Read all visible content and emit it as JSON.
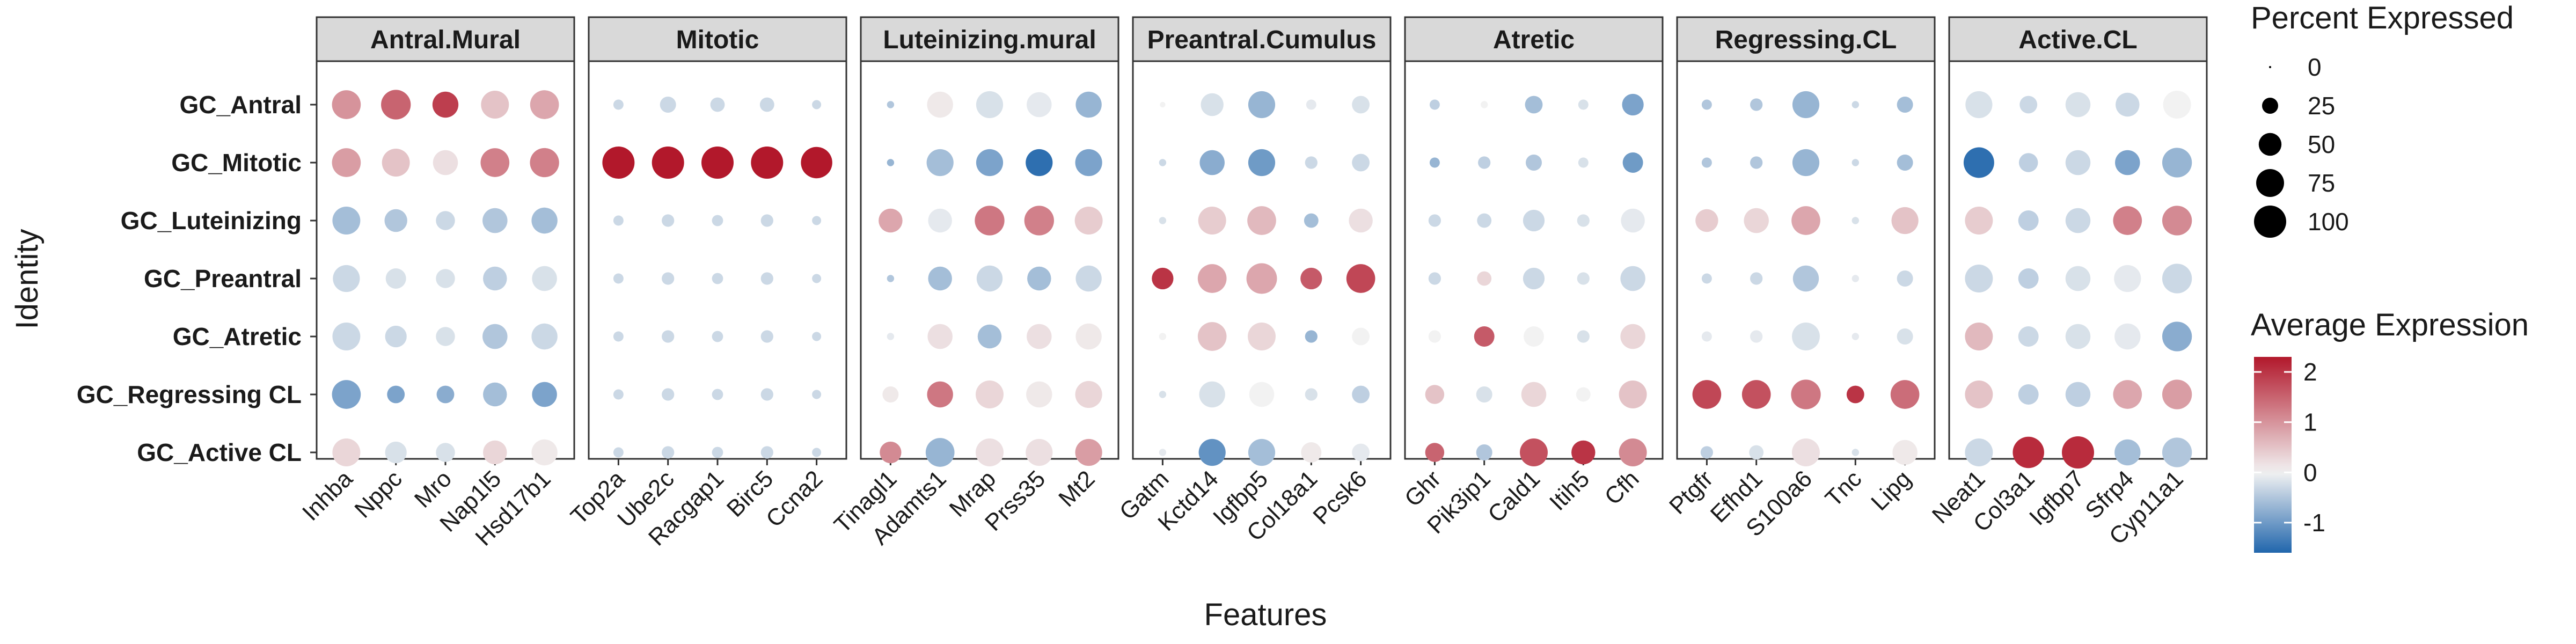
{
  "chart_data": {
    "type": "dot",
    "xlabel": "Features",
    "ylabel": "Identity",
    "identities": [
      "GC_Antral",
      "GC_Mitotic",
      "GC_Luteinizing",
      "GC_Preantral",
      "GC_Atretic",
      "GC_Regressing CL",
      "GC_Active CL"
    ],
    "size_legend": {
      "title": "Percent Expressed",
      "breaks": [
        0,
        25,
        50,
        75,
        100
      ]
    },
    "color_legend": {
      "title": "Average Expression",
      "breaks": [
        2,
        1,
        0,
        -1
      ],
      "range": [
        -1.6,
        2.3
      ],
      "low_color": "#2166ac",
      "mid_color": "#f2f2f2",
      "high_color": "#b2182b"
    },
    "panels": [
      {
        "title": "Antral.Mural",
        "genes": [
          "Inhba",
          "Nppc",
          "Mro",
          "Nap1l5",
          "Hsd17b1"
        ],
        "pct": [
          [
            80,
            85,
            65,
            75,
            80
          ],
          [
            80,
            75,
            60,
            80,
            82
          ],
          [
            75,
            50,
            35,
            60,
            65
          ],
          [
            70,
            40,
            35,
            55,
            60
          ],
          [
            75,
            45,
            35,
            60,
            65
          ],
          [
            80,
            30,
            30,
            55,
            60
          ],
          [
            75,
            45,
            35,
            55,
            65
          ]
        ],
        "avg": [
          [
            1.0,
            1.5,
            1.9,
            0.5,
            0.8
          ],
          [
            0.9,
            0.5,
            0.2,
            1.2,
            1.2
          ],
          [
            -0.6,
            -0.5,
            -0.3,
            -0.5,
            -0.6
          ],
          [
            -0.3,
            -0.2,
            -0.2,
            -0.4,
            -0.2
          ],
          [
            -0.3,
            -0.3,
            -0.2,
            -0.5,
            -0.3
          ],
          [
            -0.9,
            -0.9,
            -0.8,
            -0.6,
            -0.9
          ],
          [
            0.3,
            -0.2,
            -0.2,
            0.3,
            0.1
          ]
        ]
      },
      {
        "title": "Mitotic",
        "genes": [
          "Top2a",
          "Ube2c",
          "Racgap1",
          "Birc5",
          "Ccna2"
        ],
        "pct": [
          [
            10,
            25,
            20,
            20,
            8
          ],
          [
            100,
            100,
            100,
            100,
            95
          ],
          [
            10,
            15,
            12,
            15,
            8
          ],
          [
            10,
            15,
            12,
            15,
            8
          ],
          [
            10,
            15,
            12,
            15,
            8
          ],
          [
            10,
            15,
            12,
            15,
            8
          ],
          [
            10,
            15,
            12,
            15,
            8
          ]
        ],
        "avg": [
          [
            -0.3,
            -0.3,
            -0.3,
            -0.3,
            -0.3
          ],
          [
            2.3,
            2.3,
            2.3,
            2.3,
            2.3
          ],
          [
            -0.3,
            -0.3,
            -0.3,
            -0.3,
            -0.3
          ],
          [
            -0.3,
            -0.3,
            -0.3,
            -0.3,
            -0.3
          ],
          [
            -0.3,
            -0.3,
            -0.3,
            -0.3,
            -0.3
          ],
          [
            -0.3,
            -0.3,
            -0.3,
            -0.3,
            -0.3
          ],
          [
            -0.3,
            -0.3,
            -0.3,
            -0.3,
            -0.3
          ]
        ]
      },
      {
        "title": "Luteinizing.mural",
        "genes": [
          "Tinagl1",
          "Adamts1",
          "Mrap",
          "Prss35",
          "Mt2"
        ],
        "pct": [
          [
            5,
            65,
            70,
            60,
            65
          ],
          [
            5,
            70,
            70,
            70,
            70
          ],
          [
            55,
            55,
            85,
            85,
            75
          ],
          [
            5,
            55,
            65,
            55,
            65
          ],
          [
            5,
            60,
            55,
            60,
            65
          ],
          [
            25,
            65,
            75,
            65,
            70
          ],
          [
            45,
            80,
            75,
            70,
            70
          ]
        ],
        "avg": [
          [
            -0.5,
            0.1,
            -0.2,
            -0.1,
            -0.7
          ],
          [
            -0.7,
            -0.6,
            -0.9,
            -1.5,
            -0.9
          ],
          [
            0.8,
            -0.1,
            1.3,
            1.2,
            0.4
          ],
          [
            -0.5,
            -0.6,
            -0.3,
            -0.6,
            -0.3
          ],
          [
            -0.1,
            0.2,
            -0.6,
            0.2,
            0.1
          ],
          [
            0.1,
            1.3,
            0.3,
            0.1,
            0.3
          ],
          [
            1.1,
            -0.7,
            0.2,
            0.2,
            0.9
          ]
        ]
      },
      {
        "title": "Preantral.Cumulus",
        "genes": [
          "Gatm",
          "Kctd14",
          "Igfbp5",
          "Col18a1",
          "Pcsk6"
        ],
        "pct": [
          [
            3,
            50,
            70,
            10,
            30
          ],
          [
            5,
            60,
            70,
            15,
            30
          ],
          [
            5,
            75,
            80,
            20,
            55
          ],
          [
            45,
            80,
            90,
            45,
            80
          ],
          [
            5,
            80,
            75,
            15,
            30
          ],
          [
            5,
            65,
            60,
            15,
            30
          ],
          [
            5,
            70,
            70,
            40,
            30
          ]
        ],
        "avg": [
          [
            0.0,
            -0.2,
            -0.7,
            -0.1,
            -0.2
          ],
          [
            -0.3,
            -0.8,
            -1.0,
            -0.3,
            -0.3
          ],
          [
            -0.2,
            0.4,
            0.6,
            -0.6,
            0.2
          ],
          [
            2.0,
            0.8,
            0.8,
            1.6,
            1.8
          ],
          [
            0.0,
            0.5,
            0.3,
            -0.7,
            0.0
          ],
          [
            -0.2,
            -0.2,
            0.0,
            -0.2,
            -0.4
          ],
          [
            -0.1,
            -1.1,
            -0.6,
            0.1,
            -0.1
          ]
        ]
      },
      {
        "title": "Atretic",
        "genes": [
          "Ghr",
          "Pik3ip1",
          "Cald1",
          "Itih5",
          "Cfh"
        ],
        "pct": [
          [
            10,
            5,
            30,
            10,
            45
          ],
          [
            10,
            15,
            25,
            10,
            40
          ],
          [
            15,
            20,
            45,
            15,
            55
          ],
          [
            15,
            20,
            45,
            15,
            60
          ],
          [
            15,
            40,
            40,
            15,
            60
          ],
          [
            35,
            25,
            60,
            20,
            75
          ],
          [
            35,
            25,
            75,
            55,
            75
          ]
        ],
        "avg": [
          [
            -0.4,
            0.0,
            -0.6,
            -0.2,
            -0.9
          ],
          [
            -0.7,
            -0.4,
            -0.5,
            -0.2,
            -1.0
          ],
          [
            -0.3,
            -0.3,
            -0.3,
            -0.2,
            -0.1
          ],
          [
            -0.3,
            0.3,
            -0.3,
            -0.2,
            -0.3
          ],
          [
            0.0,
            1.6,
            0.0,
            -0.2,
            0.3
          ],
          [
            0.5,
            -0.2,
            0.3,
            0.0,
            0.5
          ],
          [
            1.5,
            -0.5,
            1.7,
            2.0,
            1.1
          ]
        ]
      },
      {
        "title": "Regressing.CL",
        "genes": [
          "Ptgfr",
          "Efhd1",
          "S100a6",
          "Tnc",
          "Lipg"
        ],
        "pct": [
          [
            10,
            15,
            70,
            5,
            25
          ],
          [
            10,
            15,
            70,
            5,
            25
          ],
          [
            50,
            60,
            80,
            5,
            70
          ],
          [
            10,
            15,
            65,
            5,
            25
          ],
          [
            10,
            15,
            75,
            5,
            25
          ],
          [
            80,
            80,
            85,
            30,
            80
          ],
          [
            15,
            20,
            75,
            5,
            60
          ]
        ],
        "avg": [
          [
            -0.5,
            -0.5,
            -0.7,
            -0.3,
            -0.6
          ],
          [
            -0.5,
            -0.5,
            -0.7,
            -0.3,
            -0.6
          ],
          [
            0.4,
            0.3,
            0.8,
            -0.2,
            0.5
          ],
          [
            -0.3,
            -0.3,
            -0.5,
            -0.1,
            -0.3
          ],
          [
            -0.1,
            -0.1,
            -0.2,
            -0.1,
            -0.2
          ],
          [
            1.8,
            1.7,
            1.3,
            2.0,
            1.4
          ],
          [
            -0.4,
            -0.2,
            0.2,
            -0.2,
            0.1
          ]
        ]
      },
      {
        "title": "Active.CL",
        "genes": [
          "Neat1",
          "Col3a1",
          "Igfbp7",
          "Sfrp4",
          "Cyp11a1"
        ],
        "pct": [
          [
            70,
            30,
            60,
            55,
            75
          ],
          [
            90,
            35,
            60,
            60,
            85
          ],
          [
            75,
            40,
            60,
            80,
            85
          ],
          [
            75,
            40,
            60,
            70,
            85
          ],
          [
            75,
            40,
            60,
            65,
            85
          ],
          [
            75,
            40,
            60,
            80,
            85
          ],
          [
            75,
            95,
            100,
            65,
            85
          ]
        ],
        "avg": [
          [
            -0.2,
            -0.3,
            -0.2,
            -0.3,
            0.0
          ],
          [
            -1.5,
            -0.4,
            -0.3,
            -0.9,
            -0.7
          ],
          [
            0.4,
            -0.4,
            -0.3,
            1.2,
            1.1
          ],
          [
            -0.3,
            -0.4,
            -0.2,
            -0.1,
            -0.3
          ],
          [
            0.6,
            -0.3,
            -0.2,
            -0.1,
            -0.8
          ],
          [
            0.5,
            -0.4,
            -0.4,
            0.8,
            0.9
          ],
          [
            -0.3,
            2.1,
            2.1,
            -0.6,
            -0.5
          ]
        ]
      }
    ]
  }
}
